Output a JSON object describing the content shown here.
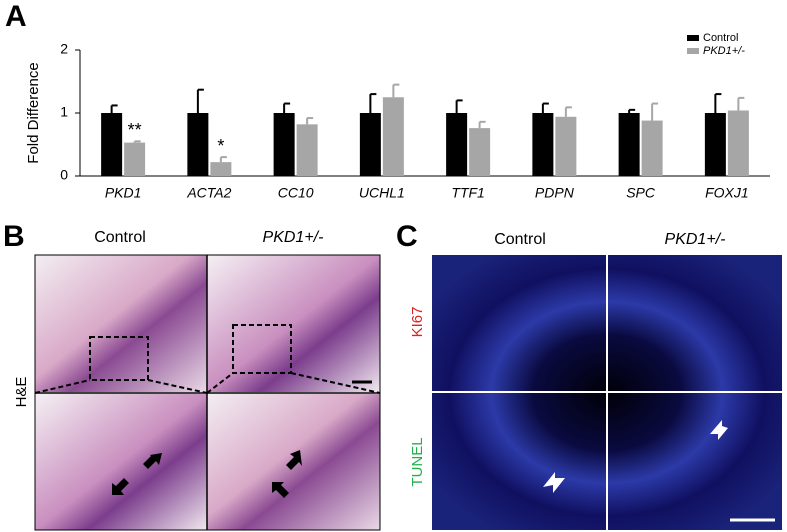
{
  "chart_data": {
    "type": "bar",
    "panel_label": "A",
    "y_label": "Fold Difference",
    "categories": [
      "PKD1",
      "ACTA2",
      "CC10",
      "UCHL1",
      "TTF1",
      "PDPN",
      "SPC",
      "FOXJ1"
    ],
    "series": [
      {
        "name": "Control",
        "color": "#000000",
        "values": [
          1,
          1,
          1,
          1,
          1,
          1,
          1,
          1
        ],
        "errors": [
          0.12,
          0.37,
          0.15,
          0.3,
          0.2,
          0.15,
          0.05,
          0.3
        ]
      },
      {
        "name": "PKD1+/-",
        "color": "#a6a6a6",
        "values": [
          0.53,
          0.22,
          0.82,
          1.25,
          0.76,
          0.94,
          0.88,
          1.04
        ],
        "errors": [
          0.02,
          0.08,
          0.1,
          0.2,
          0.1,
          0.15,
          0.27,
          0.2
        ]
      }
    ],
    "annotations": [
      {
        "text": "**",
        "category": "PKD1"
      },
      {
        "text": "*",
        "category": "ACTA2"
      }
    ],
    "ylim": [
      0,
      2
    ],
    "yticks": [
      0,
      1,
      2
    ],
    "grid": false,
    "legend": "top-right"
  },
  "panel_b": {
    "label": "B",
    "columns": [
      "Control",
      "PKD1+/-"
    ],
    "row_label": "H&E"
  },
  "panel_c": {
    "label": "C",
    "columns": [
      "Control",
      "PKD1+/-"
    ],
    "rows": [
      "KI67",
      "TUNEL"
    ]
  }
}
